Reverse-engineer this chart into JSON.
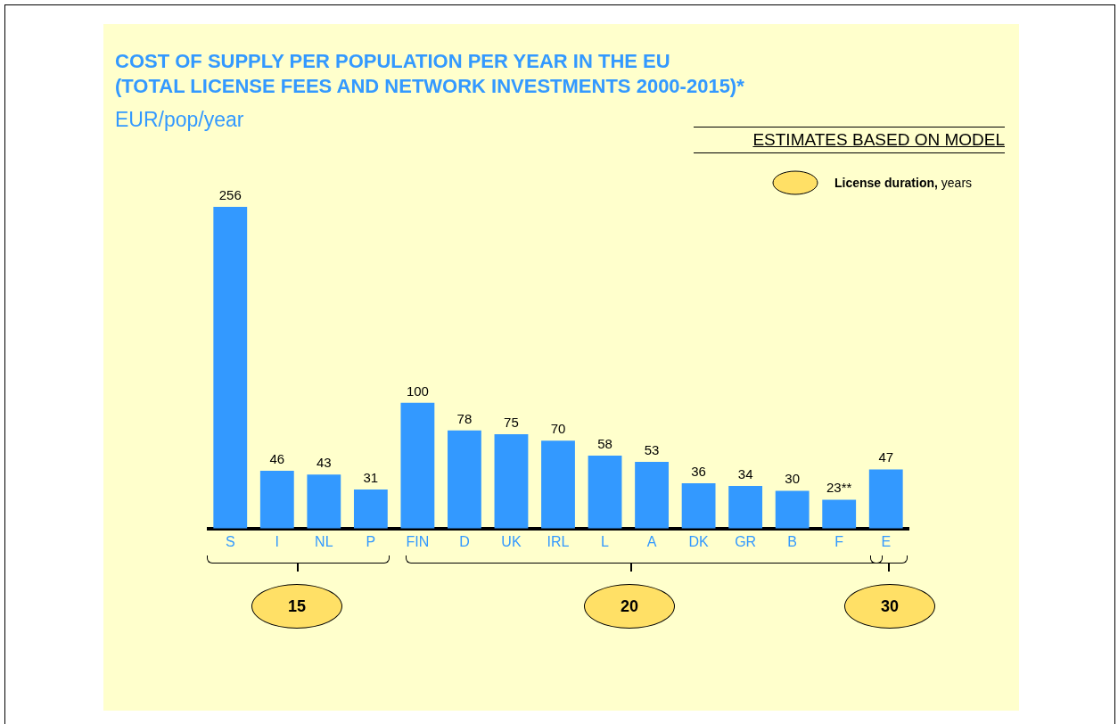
{
  "chart_data": {
    "type": "bar",
    "title": "COST OF SUPPLY PER POPULATION PER YEAR IN THE EU\n(TOTAL LICENSE FEES AND NETWORK INVESTMENTS 2000-2015)*",
    "subtitle": "EUR/pop/year",
    "categories": [
      "S",
      "I",
      "NL",
      "P",
      "FIN",
      "D",
      "UK",
      "IRL",
      "L",
      "A",
      "DK",
      "GR",
      "B",
      "F",
      "E"
    ],
    "values": [
      256,
      46,
      43,
      31,
      100,
      78,
      75,
      70,
      58,
      53,
      36,
      34,
      30,
      23,
      47
    ],
    "value_labels": [
      "256",
      "46",
      "43",
      "31",
      "100",
      "78",
      "75",
      "70",
      "58",
      "53",
      "36",
      "34",
      "30",
      "23**",
      "47"
    ],
    "color": "#3399ff",
    "annotations": [
      "ESTIMATES BASED ON MODEL",
      "License duration, years",
      "15",
      "20",
      "30"
    ],
    "grid": false,
    "legend": false
  }
}
